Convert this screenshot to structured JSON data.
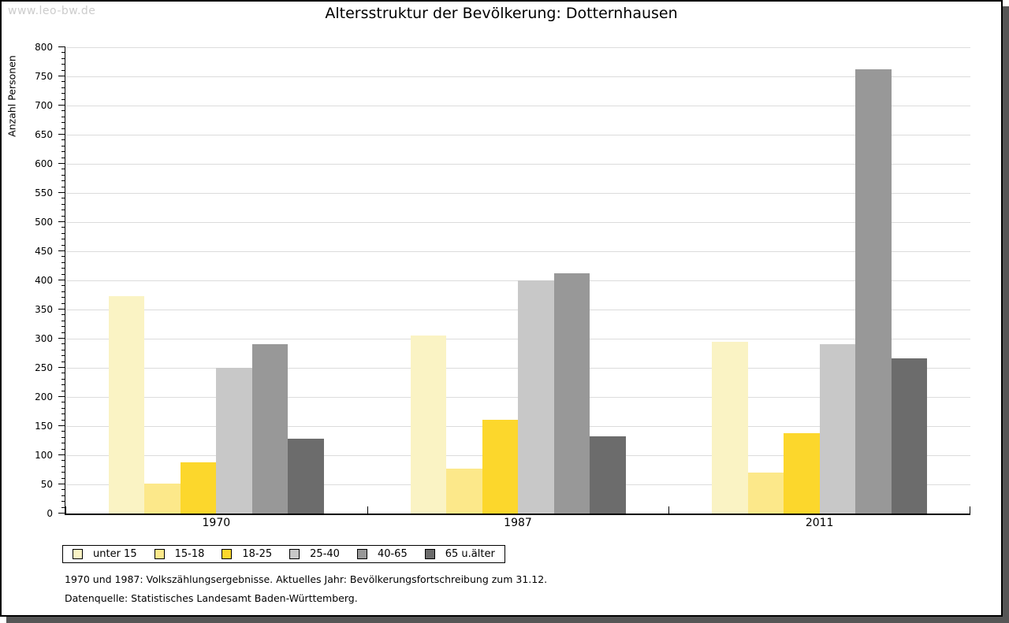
{
  "watermark": "www.leo-bw.de",
  "title": "Altersstruktur der Bevölkerung: Dotternhausen",
  "footnotes": [
    "1970 und 1987: Volkszählungsergebnisse. Aktuelles Jahr: Bevölkerungsfortschreibung zum 31.12.",
    "Datenquelle: Statistisches Landesamt Baden-Württemberg."
  ],
  "chart_data": {
    "type": "bar",
    "title": "Altersstruktur der Bevölkerung: Dotternhausen",
    "xlabel": "",
    "ylabel": "Anzahl Personen",
    "ylim": [
      0,
      800
    ],
    "ytick_step": 50,
    "minor_tick_step": 10,
    "grid": true,
    "legend_position": "bottom",
    "categories": [
      "1970",
      "1987",
      "2011"
    ],
    "series": [
      {
        "name": "unter 15",
        "color": "#faf3c4",
        "values": [
          373,
          305,
          294
        ]
      },
      {
        "name": "15-18",
        "color": "#fce88a",
        "values": [
          51,
          77,
          70
        ]
      },
      {
        "name": "18-25",
        "color": "#fcd72c",
        "values": [
          88,
          161,
          138
        ]
      },
      {
        "name": "25-40",
        "color": "#c8c8c8",
        "values": [
          250,
          400,
          290
        ]
      },
      {
        "name": "40-65",
        "color": "#989898",
        "values": [
          290,
          412,
          762
        ]
      },
      {
        "name": "65 u.älter",
        "color": "#6c6c6c",
        "values": [
          129,
          132,
          266
        ]
      }
    ],
    "colors": {
      "gridline": "#dcdcdc",
      "axis": "#000000",
      "frame_shadow": "#565656",
      "watermark": "#cccccc"
    }
  }
}
